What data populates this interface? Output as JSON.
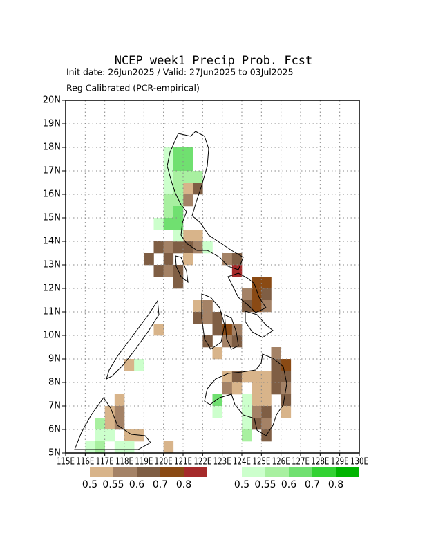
{
  "chart_data": {
    "type": "gridmap",
    "title": "NCEP week1 Precip Prob. Fcst",
    "subtitle": [
      "Init date: 26Jun2025 / Valid: 27Jun2025 to 03Jul2025",
      "Reg Calibrated (PCR-empirical)"
    ],
    "xlim": [
      115,
      130
    ],
    "ylim": [
      5,
      20
    ],
    "cell": 0.5,
    "grid": true,
    "xticks": [
      {
        "value": 115,
        "label": "115E"
      },
      {
        "value": 116,
        "label": "116E"
      },
      {
        "value": 117,
        "label": "117E"
      },
      {
        "value": 118,
        "label": "118E"
      },
      {
        "value": 119,
        "label": "119E"
      },
      {
        "value": 120,
        "label": "120E"
      },
      {
        "value": 121,
        "label": "121E"
      },
      {
        "value": 122,
        "label": "122E"
      },
      {
        "value": 123,
        "label": "123E"
      },
      {
        "value": 124,
        "label": "124E"
      },
      {
        "value": 125,
        "label": "125E"
      },
      {
        "value": 126,
        "label": "126E"
      },
      {
        "value": 127,
        "label": "127E"
      },
      {
        "value": 128,
        "label": "128E"
      },
      {
        "value": 129,
        "label": "129E"
      },
      {
        "value": 130,
        "label": "130E"
      }
    ],
    "yticks": [
      {
        "value": 5,
        "label": "5N"
      },
      {
        "value": 6,
        "label": "6N"
      },
      {
        "value": 7,
        "label": "7N"
      },
      {
        "value": 8,
        "label": "8N"
      },
      {
        "value": 9,
        "label": "9N"
      },
      {
        "value": 10,
        "label": "10N"
      },
      {
        "value": 11,
        "label": "11N"
      },
      {
        "value": 12,
        "label": "12N"
      },
      {
        "value": 13,
        "label": "13N"
      },
      {
        "value": 14,
        "label": "14N"
      },
      {
        "value": 15,
        "label": "15N"
      },
      {
        "value": 16,
        "label": "16N"
      },
      {
        "value": 17,
        "label": "17N"
      },
      {
        "value": 18,
        "label": "18N"
      },
      {
        "value": 19,
        "label": "19N"
      },
      {
        "value": 20,
        "label": "20N"
      }
    ],
    "series": [
      {
        "levels": [
          0.5,
          0.55,
          0.6,
          0.7,
          0.8
        ],
        "colors": [
          "#d8b48a",
          "#a48266",
          "#7f5e44",
          "#8a4a14",
          "#a52a2a"
        ],
        "cells": [
          [
            121,
            16,
            0.5
          ],
          [
            121.5,
            16,
            0.6
          ],
          [
            121,
            15.5,
            0.55
          ],
          [
            121,
            14,
            0.5
          ],
          [
            121.5,
            14,
            0.5
          ],
          [
            119.5,
            13.5,
            0.6
          ],
          [
            120,
            13.5,
            0.55
          ],
          [
            120.5,
            13.5,
            0.6
          ],
          [
            121,
            13.5,
            0.6
          ],
          [
            121.5,
            13.5,
            0.55
          ],
          [
            119,
            13,
            0.6
          ],
          [
            120,
            13,
            0.6
          ],
          [
            121,
            13,
            0.5
          ],
          [
            123,
            13,
            0.55
          ],
          [
            123.5,
            13,
            0.6
          ],
          [
            119.5,
            12.5,
            0.6
          ],
          [
            120,
            12.5,
            0.55
          ],
          [
            120.5,
            12.5,
            0.6
          ],
          [
            123.5,
            12.5,
            0.8
          ],
          [
            120.5,
            12,
            0.6
          ],
          [
            124.5,
            12,
            0.7
          ],
          [
            125,
            12,
            0.7
          ],
          [
            124,
            11.5,
            0.55
          ],
          [
            124.5,
            11.5,
            0.7
          ],
          [
            125,
            11.5,
            0.6
          ],
          [
            121.5,
            11,
            0.5
          ],
          [
            122,
            11,
            0.55
          ],
          [
            124,
            11,
            0.6
          ],
          [
            124.5,
            11,
            0.7
          ],
          [
            125,
            11,
            0.55
          ],
          [
            121.5,
            10.5,
            0.6
          ],
          [
            122,
            10.5,
            0.55
          ],
          [
            122.5,
            10.5,
            0.6
          ],
          [
            122.5,
            10,
            0.6
          ],
          [
            123,
            10,
            0.7
          ],
          [
            123.5,
            10,
            0.55
          ],
          [
            122,
            9.5,
            0.6
          ],
          [
            123,
            9.5,
            0.55
          ],
          [
            123.5,
            9.5,
            0.6
          ],
          [
            122.5,
            9,
            0.5
          ],
          [
            125.5,
            9,
            0.55
          ],
          [
            125.5,
            8.5,
            0.6
          ],
          [
            126,
            8.5,
            0.7
          ],
          [
            123,
            8,
            0.5
          ],
          [
            123.5,
            8,
            0.6
          ],
          [
            124,
            8,
            0.5
          ],
          [
            124.5,
            8,
            0.5
          ],
          [
            125,
            8,
            0.5
          ],
          [
            125.5,
            8,
            0.6
          ],
          [
            126,
            8,
            0.6
          ],
          [
            123,
            7.5,
            0.55
          ],
          [
            123.5,
            7.5,
            0.5
          ],
          [
            124.5,
            7.5,
            0.5
          ],
          [
            125,
            7.5,
            0.5
          ],
          [
            125.5,
            7.5,
            0.6
          ],
          [
            126,
            7.5,
            0.55
          ],
          [
            124.5,
            7,
            0.5
          ],
          [
            125,
            7,
            0.5
          ],
          [
            126,
            7,
            0.6
          ],
          [
            124.5,
            6.5,
            0.55
          ],
          [
            125,
            6.5,
            0.6
          ],
          [
            126,
            6.5,
            0.5
          ],
          [
            124.5,
            6,
            0.6
          ],
          [
            125,
            6,
            0.55
          ],
          [
            125,
            5.5,
            0.6
          ],
          [
            120,
            5,
            0.5
          ],
          [
            117.5,
            7,
            0.5
          ],
          [
            117,
            6.5,
            0.5
          ],
          [
            117.5,
            6.5,
            0.55
          ],
          [
            117,
            6,
            0.5
          ],
          [
            117.5,
            6,
            0.55
          ],
          [
            118,
            5.5,
            0.5
          ],
          [
            118.5,
            5.5,
            0.5
          ],
          [
            118,
            8.5,
            0.5
          ],
          [
            119.5,
            10,
            0.5
          ]
        ]
      },
      {
        "levels": [
          0.5,
          0.55,
          0.6,
          0.7,
          0.8
        ],
        "colors": [
          "#ccffcc",
          "#a8f0a0",
          "#70e070",
          "#32d232",
          "#00b400"
        ],
        "cells": [
          [
            120,
            17.5,
            0.5
          ],
          [
            120.5,
            17.5,
            0.6
          ],
          [
            121,
            17.5,
            0.6
          ],
          [
            120,
            17,
            0.5
          ],
          [
            120.5,
            17,
            0.6
          ],
          [
            121,
            17,
            0.6
          ],
          [
            120,
            16.5,
            0.5
          ],
          [
            120.5,
            16.5,
            0.55
          ],
          [
            121,
            16.5,
            0.55
          ],
          [
            121.5,
            16.5,
            0.55
          ],
          [
            120,
            16,
            0.5
          ],
          [
            120.5,
            16,
            0.55
          ],
          [
            120,
            15.5,
            0.55
          ],
          [
            120.5,
            15.5,
            0.55
          ],
          [
            120,
            15,
            0.55
          ],
          [
            120.5,
            15,
            0.6
          ],
          [
            119.5,
            14.5,
            0.5
          ],
          [
            120,
            14.5,
            0.6
          ],
          [
            120.5,
            14.5,
            0.6
          ],
          [
            120.5,
            14,
            0.5
          ],
          [
            122,
            13.5,
            0.5
          ],
          [
            122.5,
            7,
            0.6
          ],
          [
            122.5,
            6.5,
            0.5
          ],
          [
            124,
            7,
            0.5
          ],
          [
            124,
            6.5,
            0.5
          ],
          [
            124,
            6,
            0.5
          ],
          [
            124,
            5.5,
            0.55
          ],
          [
            116.5,
            6,
            0.55
          ],
          [
            116.5,
            5.5,
            0.5
          ],
          [
            116,
            5,
            0.5
          ],
          [
            116.5,
            5,
            0.55
          ],
          [
            117,
            5.5,
            0.5
          ],
          [
            117.5,
            5,
            0.5
          ],
          [
            118,
            5,
            0.5
          ],
          [
            118.5,
            8.5,
            0.5
          ]
        ]
      }
    ]
  }
}
